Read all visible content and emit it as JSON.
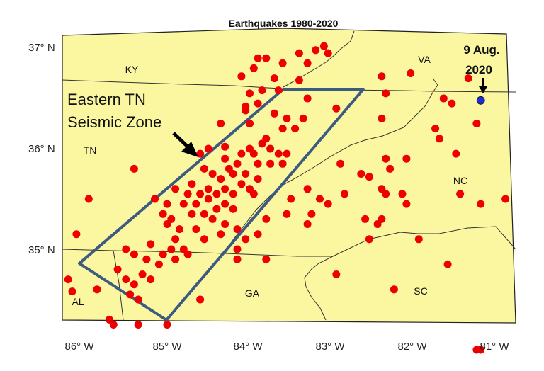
{
  "title": "Earthquakes 1980-2020",
  "lat_labels": [
    "37° N",
    "36° N",
    "35° N"
  ],
  "lon_labels": [
    "86° W",
    "85° W",
    "84° W",
    "83° W",
    "82° W",
    "81° W"
  ],
  "states": [
    "KY",
    "VA",
    "TN",
    "NC",
    "AL",
    "GA",
    "SC"
  ],
  "zone_label": [
    "Eastern TN",
    "Seismic Zone"
  ],
  "event_label": [
    "9 Aug.",
    "2020"
  ],
  "colors": {
    "land": "#fbf7a0",
    "quake": "#ee0000",
    "event": "#1d2bd6",
    "zone": "#3d5a80",
    "border": "#333333"
  },
  "event_location": {
    "lon": -81.2,
    "lat": 36.48
  },
  "earthquakes": [
    [
      -83.1,
      37.02
    ],
    [
      -83.2,
      36.98
    ],
    [
      -83.05,
      36.95
    ],
    [
      -83.4,
      36.95
    ],
    [
      -83.9,
      36.9
    ],
    [
      -83.8,
      36.9
    ],
    [
      -83.6,
      36.85
    ],
    [
      -83.3,
      36.85
    ],
    [
      -83.95,
      36.8
    ],
    [
      -84.1,
      36.72
    ],
    [
      -83.7,
      36.7
    ],
    [
      -83.4,
      36.68
    ],
    [
      -83.85,
      36.58
    ],
    [
      -83.65,
      36.58
    ],
    [
      -84.0,
      36.55
    ],
    [
      -83.3,
      36.5
    ],
    [
      -83.9,
      36.45
    ],
    [
      -84.05,
      36.42
    ],
    [
      -84.05,
      36.38
    ],
    [
      -83.7,
      36.35
    ],
    [
      -82.95,
      36.4
    ],
    [
      -83.55,
      36.3
    ],
    [
      -83.35,
      36.3
    ],
    [
      -83.45,
      36.2
    ],
    [
      -83.6,
      36.2
    ],
    [
      -83.8,
      36.1
    ],
    [
      -84.0,
      36.25
    ],
    [
      -84.0,
      36.0
    ],
    [
      -83.85,
      36.05
    ],
    [
      -83.75,
      36.0
    ],
    [
      -83.65,
      35.95
    ],
    [
      -83.95,
      35.95
    ],
    [
      -83.75,
      35.85
    ],
    [
      -83.55,
      35.95
    ],
    [
      -83.6,
      35.85
    ],
    [
      -84.3,
      36.02
    ],
    [
      -84.3,
      35.9
    ],
    [
      -84.15,
      35.85
    ],
    [
      -84.05,
      35.75
    ],
    [
      -83.9,
      35.7
    ],
    [
      -84.2,
      35.75
    ],
    [
      -84.25,
      35.8
    ],
    [
      -84.35,
      35.7
    ],
    [
      -84.45,
      35.75
    ],
    [
      -84.55,
      35.8
    ],
    [
      -84.1,
      35.65
    ],
    [
      -84.0,
      35.6
    ],
    [
      -83.95,
      35.55
    ],
    [
      -84.2,
      35.55
    ],
    [
      -84.3,
      35.6
    ],
    [
      -84.4,
      35.55
    ],
    [
      -84.5,
      35.5
    ],
    [
      -84.6,
      35.55
    ],
    [
      -84.65,
      35.45
    ],
    [
      -84.75,
      35.55
    ],
    [
      -84.8,
      35.45
    ],
    [
      -84.7,
      35.35
    ],
    [
      -84.55,
      35.35
    ],
    [
      -84.4,
      35.4
    ],
    [
      -84.3,
      35.45
    ],
    [
      -84.2,
      35.4
    ],
    [
      -84.45,
      35.3
    ],
    [
      -84.3,
      35.25
    ],
    [
      -84.15,
      35.2
    ],
    [
      -84.35,
      35.15
    ],
    [
      -84.55,
      35.1
    ],
    [
      -84.65,
      35.2
    ],
    [
      -84.85,
      35.2
    ],
    [
      -84.95,
      35.3
    ],
    [
      -85.0,
      35.25
    ],
    [
      -84.9,
      35.1
    ],
    [
      -84.8,
      35.0
    ],
    [
      -84.75,
      34.95
    ],
    [
      -84.9,
      34.9
    ],
    [
      -84.95,
      35.0
    ],
    [
      -85.05,
      34.95
    ],
    [
      -85.2,
      35.05
    ],
    [
      -85.1,
      34.85
    ],
    [
      -85.25,
      34.9
    ],
    [
      -85.4,
      34.95
    ],
    [
      -85.5,
      35.0
    ],
    [
      -85.3,
      34.75
    ],
    [
      -85.2,
      34.7
    ],
    [
      -85.4,
      34.65
    ],
    [
      -85.5,
      34.7
    ],
    [
      -85.6,
      34.8
    ],
    [
      -85.45,
      34.55
    ],
    [
      -85.35,
      34.5
    ],
    [
      -85.7,
      34.3
    ],
    [
      -85.65,
      34.25
    ],
    [
      -85.35,
      34.25
    ],
    [
      -85.0,
      34.25
    ],
    [
      -85.85,
      34.6
    ],
    [
      -86.2,
      34.7
    ],
    [
      -86.15,
      34.58
    ],
    [
      -85.95,
      35.5
    ],
    [
      -86.1,
      35.15
    ],
    [
      -85.4,
      35.8
    ],
    [
      -85.15,
      35.5
    ],
    [
      -85.0,
      35.45
    ],
    [
      -85.05,
      35.35
    ],
    [
      -84.6,
      35.95
    ],
    [
      -84.5,
      36.0
    ],
    [
      -84.35,
      36.25
    ],
    [
      -83.3,
      35.6
    ],
    [
      -83.5,
      35.5
    ],
    [
      -83.55,
      35.35
    ],
    [
      -83.8,
      35.3
    ],
    [
      -83.9,
      35.15
    ],
    [
      -84.05,
      35.1
    ],
    [
      -84.15,
      35.0
    ],
    [
      -83.05,
      35.45
    ],
    [
      -83.15,
      35.5
    ],
    [
      -83.25,
      35.35
    ],
    [
      -83.3,
      35.25
    ],
    [
      -82.85,
      35.55
    ],
    [
      -82.65,
      35.75
    ],
    [
      -82.55,
      35.72
    ],
    [
      -82.9,
      35.85
    ],
    [
      -82.4,
      35.6
    ],
    [
      -82.35,
      35.55
    ],
    [
      -82.4,
      35.3
    ],
    [
      -82.45,
      35.25
    ],
    [
      -82.6,
      35.3
    ],
    [
      -82.1,
      35.45
    ],
    [
      -82.15,
      35.55
    ],
    [
      -82.3,
      35.8
    ],
    [
      -82.35,
      35.9
    ],
    [
      -82.1,
      35.9
    ],
    [
      -82.4,
      36.3
    ],
    [
      -82.35,
      36.55
    ],
    [
      -82.05,
      36.75
    ],
    [
      -81.65,
      36.5
    ],
    [
      -81.55,
      36.45
    ],
    [
      -81.7,
      36.1
    ],
    [
      -81.75,
      36.2
    ],
    [
      -81.5,
      35.95
    ],
    [
      -81.25,
      36.25
    ],
    [
      -81.35,
      36.7
    ],
    [
      -82.4,
      36.72
    ],
    [
      -81.45,
      35.55
    ],
    [
      -81.2,
      35.45
    ],
    [
      -80.9,
      35.5
    ],
    [
      -81.95,
      35.1
    ],
    [
      -82.55,
      35.1
    ],
    [
      -82.25,
      34.6
    ],
    [
      -81.6,
      34.85
    ],
    [
      -82.95,
      34.75
    ],
    [
      -81.25,
      34.0
    ],
    [
      -81.2,
      34.0
    ],
    [
      -83.8,
      34.9
    ],
    [
      -84.6,
      34.5
    ],
    [
      -84.15,
      34.9
    ],
    [
      -84.5,
      35.6
    ],
    [
      -84.7,
      35.65
    ],
    [
      -84.9,
      35.6
    ],
    [
      -84.1,
      35.95
    ],
    [
      -83.9,
      35.85
    ]
  ]
}
